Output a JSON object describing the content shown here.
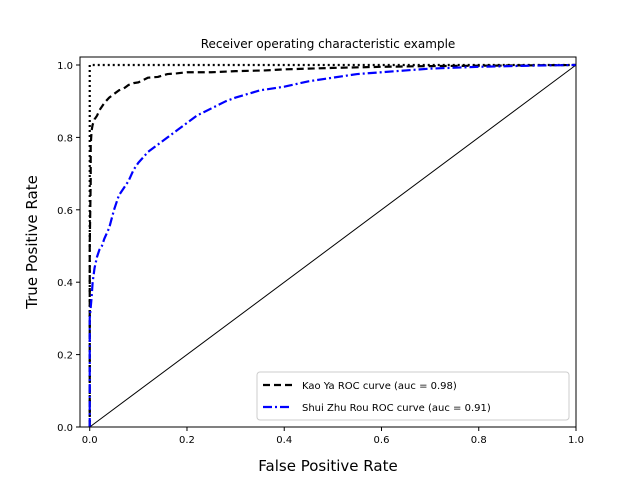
{
  "chart_data": {
    "type": "line",
    "title": "Receiver operating characteristic example",
    "xlabel": "False Positive Rate",
    "ylabel": "True Positive Rate",
    "xlim": [
      0.0,
      1.0
    ],
    "ylim": [
      0.0,
      1.0
    ],
    "xticks": [
      0.0,
      0.2,
      0.4,
      0.6,
      0.8,
      1.0
    ],
    "yticks": [
      0.0,
      0.2,
      0.4,
      0.6,
      0.8,
      1.0
    ],
    "xtick_labels": [
      "0.0",
      "0.2",
      "0.4",
      "0.6",
      "0.8",
      "1.0"
    ],
    "ytick_labels": [
      "0.0",
      "0.2",
      "0.4",
      "0.6",
      "0.8",
      "1.0"
    ],
    "grid": false,
    "legend_position": "lower-right",
    "series": [
      {
        "name": "Kao Ya ROC curve (auc = 0.98)",
        "color": "#000000",
        "style": "dashed",
        "x": [
          0,
          0,
          0.002,
          0.002,
          0.004,
          0.006,
          0.01,
          0.015,
          0.02,
          0.03,
          0.04,
          0.05,
          0.06,
          0.07,
          0.08,
          0.09,
          0.1,
          0.12,
          0.14,
          0.16,
          0.18,
          0.2,
          0.25,
          0.3,
          0.36,
          0.4,
          0.45,
          0.5,
          0.6,
          0.7,
          0.8,
          0.9,
          1.0
        ],
        "y": [
          0,
          0.5,
          0.68,
          0.78,
          0.82,
          0.835,
          0.85,
          0.86,
          0.875,
          0.895,
          0.91,
          0.92,
          0.93,
          0.935,
          0.945,
          0.95,
          0.952,
          0.965,
          0.967,
          0.975,
          0.977,
          0.98,
          0.98,
          0.983,
          0.985,
          0.988,
          0.99,
          0.992,
          0.995,
          0.997,
          0.998,
          0.999,
          1.0
        ]
      },
      {
        "name": "Shui Zhu Rou ROC curve (auc = 0.91)",
        "color": "#0000ff",
        "style": "dash-dot",
        "x": [
          0,
          0,
          0.002,
          0.004,
          0.006,
          0.01,
          0.015,
          0.02,
          0.025,
          0.03,
          0.04,
          0.05,
          0.06,
          0.07,
          0.08,
          0.09,
          0.1,
          0.12,
          0.14,
          0.16,
          0.18,
          0.2,
          0.22,
          0.25,
          0.28,
          0.3,
          0.35,
          0.4,
          0.45,
          0.5,
          0.55,
          0.6,
          0.65,
          0.7,
          0.8,
          0.9,
          1.0
        ],
        "y": [
          0,
          0.3,
          0.33,
          0.36,
          0.4,
          0.44,
          0.47,
          0.49,
          0.5,
          0.52,
          0.55,
          0.6,
          0.64,
          0.66,
          0.68,
          0.71,
          0.73,
          0.76,
          0.78,
          0.8,
          0.82,
          0.84,
          0.86,
          0.88,
          0.9,
          0.91,
          0.93,
          0.94,
          0.955,
          0.965,
          0.975,
          0.98,
          0.985,
          0.99,
          0.995,
          0.998,
          1.0
        ]
      }
    ],
    "reference_lines": [
      {
        "kind": "diagonal",
        "color": "#000000",
        "style": "solid",
        "x": [
          0,
          1
        ],
        "y": [
          0,
          1
        ]
      },
      {
        "kind": "perfect",
        "color": "#000000",
        "style": "dotted",
        "x": [
          0,
          0,
          1
        ],
        "y": [
          0,
          1,
          1
        ]
      }
    ]
  }
}
